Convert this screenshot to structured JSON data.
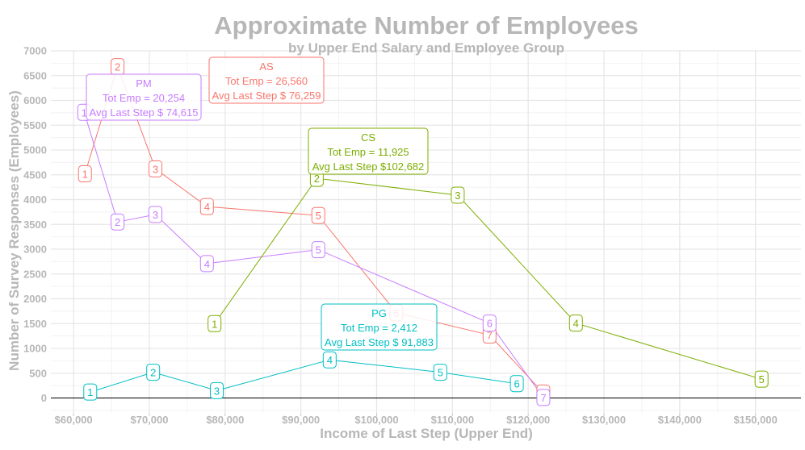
{
  "chart_data": {
    "type": "line",
    "title": "Approximate Number of Employees",
    "subtitle": "by Upper End Salary and Employee Group",
    "xlabel": "Income of Last Step (Upper End)",
    "ylabel": "Number of Survey Responses (Employees)",
    "xlim": [
      57000,
      156000
    ],
    "ylim": [
      -300,
      7000
    ],
    "x_ticks": [
      {
        "value": 60000,
        "label": "$60,000"
      },
      {
        "value": 70000,
        "label": "$70,000"
      },
      {
        "value": 80000,
        "label": "$80,000"
      },
      {
        "value": 90000,
        "label": "$90,000"
      },
      {
        "value": 100000,
        "label": "$100,000"
      },
      {
        "value": 110000,
        "label": "$110,000"
      },
      {
        "value": 120000,
        "label": "$120,000"
      },
      {
        "value": 130000,
        "label": "$130,000"
      },
      {
        "value": 140000,
        "label": "$140,000"
      },
      {
        "value": 150000,
        "label": "$150,000"
      }
    ],
    "y_ticks": [
      {
        "value": 0,
        "label": "0"
      },
      {
        "value": 500,
        "label": "500"
      },
      {
        "value": 1000,
        "label": "1000"
      },
      {
        "value": 1500,
        "label": "1500"
      },
      {
        "value": 2000,
        "label": "2000"
      },
      {
        "value": 2500,
        "label": "2500"
      },
      {
        "value": 3000,
        "label": "3000"
      },
      {
        "value": 3500,
        "label": "3500"
      },
      {
        "value": 4000,
        "label": "4000"
      },
      {
        "value": 4500,
        "label": "4500"
      },
      {
        "value": 5000,
        "label": "5000"
      },
      {
        "value": 5500,
        "label": "5500"
      },
      {
        "value": 6000,
        "label": "6000"
      },
      {
        "value": 6500,
        "label": "6500"
      },
      {
        "value": 7000,
        "label": "7000"
      }
    ],
    "grid": true,
    "zero_line": true,
    "series": [
      {
        "name": "AS",
        "color": "#F8766D",
        "points": [
          {
            "x": 61500,
            "y": 4520,
            "label": "1"
          },
          {
            "x": 65800,
            "y": 6680,
            "label": "2"
          },
          {
            "x": 70800,
            "y": 4620,
            "label": "3"
          },
          {
            "x": 77600,
            "y": 3860,
            "label": "4"
          },
          {
            "x": 92300,
            "y": 3680,
            "label": "5"
          },
          {
            "x": 102600,
            "y": 1720,
            "label": "6"
          },
          {
            "x": 114900,
            "y": 1270,
            "label": "7"
          },
          {
            "x": 122000,
            "y": 100,
            "label": "8"
          }
        ],
        "annotation": {
          "name": "AS",
          "total": "Tot Emp = 26,560",
          "avg": "Avg Last Step $ 76,259"
        }
      },
      {
        "name": "PM",
        "color": "#C77CFF",
        "points": [
          {
            "x": 61400,
            "y": 5760,
            "label": "1"
          },
          {
            "x": 65800,
            "y": 3550,
            "label": "2"
          },
          {
            "x": 70800,
            "y": 3700,
            "label": "3"
          },
          {
            "x": 77600,
            "y": 2710,
            "label": "4"
          },
          {
            "x": 92300,
            "y": 2990,
            "label": "5"
          },
          {
            "x": 114900,
            "y": 1510,
            "label": "6"
          },
          {
            "x": 122000,
            "y": 10,
            "label": "7"
          }
        ],
        "annotation": {
          "name": "PM",
          "total": "Tot Emp = 20,254",
          "avg": "Avg Last Step $ 74,615"
        }
      },
      {
        "name": "CS",
        "color": "#7CAE00",
        "points": [
          {
            "x": 78600,
            "y": 1500,
            "label": "1"
          },
          {
            "x": 92100,
            "y": 4430,
            "label": "2"
          },
          {
            "x": 110700,
            "y": 4090,
            "label": "3"
          },
          {
            "x": 126300,
            "y": 1510,
            "label": "4"
          },
          {
            "x": 150800,
            "y": 380,
            "label": "5"
          }
        ],
        "annotation": {
          "name": "CS",
          "total": "Tot Emp = 11,925",
          "avg": "Avg Last Step $102,682"
        }
      },
      {
        "name": "PG",
        "color": "#00BFC4",
        "points": [
          {
            "x": 62200,
            "y": 120,
            "label": "1"
          },
          {
            "x": 70500,
            "y": 520,
            "label": "2"
          },
          {
            "x": 78900,
            "y": 150,
            "label": "3"
          },
          {
            "x": 93800,
            "y": 770,
            "label": "4"
          },
          {
            "x": 108400,
            "y": 520,
            "label": "5"
          },
          {
            "x": 118500,
            "y": 290,
            "label": "6"
          }
        ],
        "annotation": {
          "name": "PG",
          "total": "Tot Emp =  2,412",
          "avg": "Avg Last Step $ 91,883"
        }
      }
    ]
  }
}
